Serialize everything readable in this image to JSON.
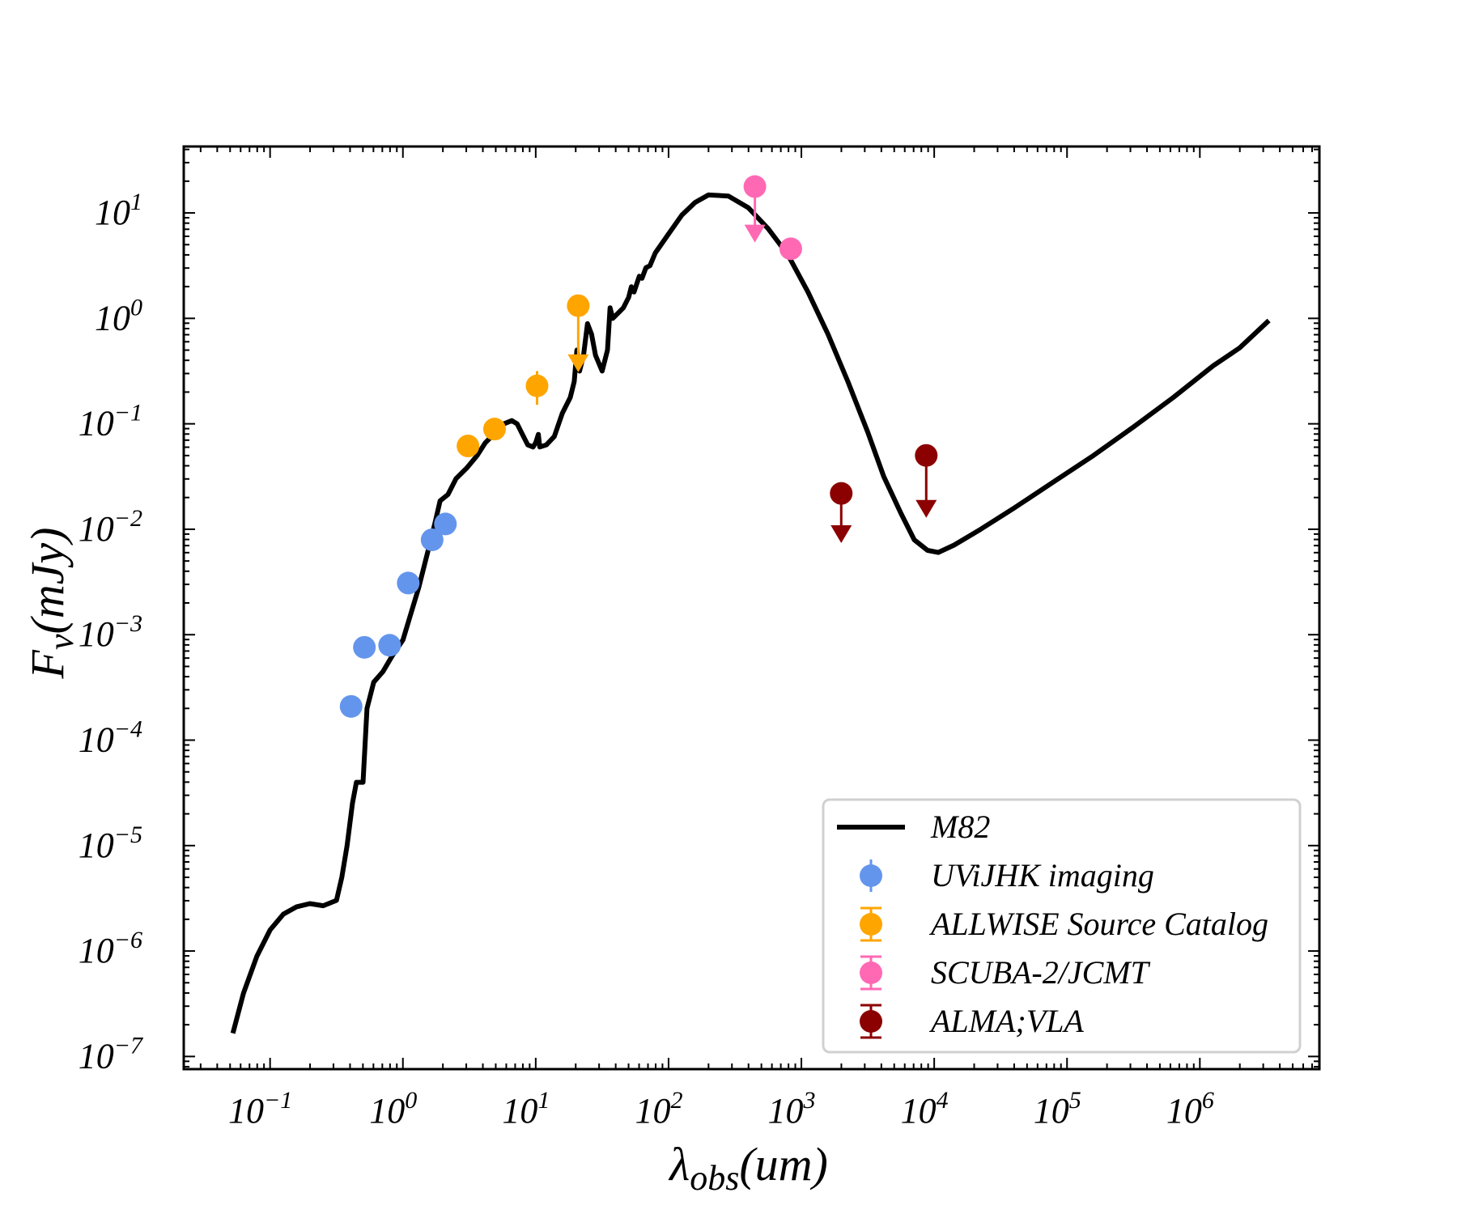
{
  "chart_data": {
    "type": "scatter",
    "title": "",
    "xscale": "log",
    "yscale": "log",
    "xlim_log10": [
      -1.65,
      6.9
    ],
    "ylim_log10": [
      -7.12,
      6.5
    ],
    "xlabel": {
      "main": "λ",
      "sub": "obs",
      "rest": "(um)"
    },
    "ylabel": {
      "main": "F",
      "sub": "ν",
      "rest": "(mJy)"
    },
    "x_ticks": [
      {
        "base": "10",
        "exp": "−1",
        "log": -1
      },
      {
        "base": "10",
        "exp": "0",
        "log": 0
      },
      {
        "base": "10",
        "exp": "1",
        "log": 1
      },
      {
        "base": "10",
        "exp": "2",
        "log": 2
      },
      {
        "base": "10",
        "exp": "3",
        "log": 3
      },
      {
        "base": "10",
        "exp": "4",
        "log": 4
      },
      {
        "base": "10",
        "exp": "5",
        "log": 5
      },
      {
        "base": "10",
        "exp": "6",
        "log": 6
      }
    ],
    "y_ticks": [
      {
        "base": "10",
        "exp": "1",
        "log": 1
      },
      {
        "base": "10",
        "exp": "0",
        "log": 0
      },
      {
        "base": "10",
        "exp": "−1",
        "log": -1
      },
      {
        "base": "10",
        "exp": "−2",
        "log": -2
      },
      {
        "base": "10",
        "exp": "−3",
        "log": -3
      },
      {
        "base": "10",
        "exp": "−4",
        "log": -4
      },
      {
        "base": "10",
        "exp": "−5",
        "log": -5
      },
      {
        "base": "10",
        "exp": "−6",
        "log": -6
      },
      {
        "base": "10",
        "exp": "−7",
        "log": -7
      }
    ],
    "model": {
      "name": "M82",
      "color": "#000000",
      "points_log10": [
        [
          -1.28,
          -6.78
        ],
        [
          -1.2,
          -6.4
        ],
        [
          -1.1,
          -6.05
        ],
        [
          -1.0,
          -5.8
        ],
        [
          -0.9,
          -5.65
        ],
        [
          -0.8,
          -5.58
        ],
        [
          -0.7,
          -5.55
        ],
        [
          -0.6,
          -5.57
        ],
        [
          -0.5,
          -5.52
        ],
        [
          -0.46,
          -5.3
        ],
        [
          -0.42,
          -5.0
        ],
        [
          -0.38,
          -4.6
        ],
        [
          -0.35,
          -4.4
        ],
        [
          -0.3,
          -4.4
        ],
        [
          -0.27,
          -3.7
        ],
        [
          -0.22,
          -3.45
        ],
        [
          -0.15,
          -3.35
        ],
        [
          -0.08,
          -3.2
        ],
        [
          0.0,
          -3.05
        ],
        [
          0.06,
          -2.8
        ],
        [
          0.12,
          -2.55
        ],
        [
          0.18,
          -2.25
        ],
        [
          0.24,
          -1.95
        ],
        [
          0.28,
          -1.73
        ],
        [
          0.34,
          -1.67
        ],
        [
          0.4,
          -1.52
        ],
        [
          0.48,
          -1.42
        ],
        [
          0.56,
          -1.3
        ],
        [
          0.62,
          -1.18
        ],
        [
          0.7,
          -1.08
        ],
        [
          0.76,
          -1.0
        ],
        [
          0.82,
          -0.97
        ],
        [
          0.86,
          -1.0
        ],
        [
          0.9,
          -1.1
        ],
        [
          0.94,
          -1.2
        ],
        [
          0.98,
          -1.22
        ],
        [
          1.0,
          -1.18
        ],
        [
          1.02,
          -1.1
        ],
        [
          1.03,
          -1.22
        ],
        [
          1.08,
          -1.2
        ],
        [
          1.14,
          -1.12
        ],
        [
          1.2,
          -0.9
        ],
        [
          1.26,
          -0.75
        ],
        [
          1.29,
          -0.6
        ],
        [
          1.31,
          -0.3
        ],
        [
          1.33,
          -0.5
        ],
        [
          1.36,
          -0.35
        ],
        [
          1.39,
          -0.05
        ],
        [
          1.42,
          -0.15
        ],
        [
          1.45,
          -0.35
        ],
        [
          1.5,
          -0.5
        ],
        [
          1.54,
          -0.3
        ],
        [
          1.56,
          0.1
        ],
        [
          1.58,
          0.0
        ],
        [
          1.62,
          0.05
        ],
        [
          1.66,
          0.1
        ],
        [
          1.7,
          0.2
        ],
        [
          1.72,
          0.3
        ],
        [
          1.74,
          0.25
        ],
        [
          1.78,
          0.4
        ],
        [
          1.8,
          0.38
        ],
        [
          1.83,
          0.48
        ],
        [
          1.86,
          0.5
        ],
        [
          1.9,
          0.62
        ],
        [
          2.0,
          0.8
        ],
        [
          2.1,
          0.98
        ],
        [
          2.2,
          1.1
        ],
        [
          2.3,
          1.17
        ],
        [
          2.45,
          1.16
        ],
        [
          2.6,
          1.05
        ],
        [
          2.75,
          0.85
        ],
        [
          2.9,
          0.6
        ],
        [
          3.05,
          0.25
        ],
        [
          3.2,
          -0.15
        ],
        [
          3.35,
          -0.6
        ],
        [
          3.5,
          -1.08
        ],
        [
          3.62,
          -1.5
        ],
        [
          3.75,
          -1.85
        ],
        [
          3.85,
          -2.1
        ],
        [
          3.95,
          -2.2
        ],
        [
          4.03,
          -2.22
        ],
        [
          4.15,
          -2.15
        ],
        [
          4.35,
          -2.0
        ],
        [
          4.6,
          -1.8
        ],
        [
          4.9,
          -1.55
        ],
        [
          5.2,
          -1.3
        ],
        [
          5.5,
          -1.03
        ],
        [
          5.8,
          -0.75
        ],
        [
          6.1,
          -0.45
        ],
        [
          6.3,
          -0.28
        ],
        [
          6.52,
          -0.02
        ]
      ]
    },
    "series": [
      {
        "name": "UViJHK imaging",
        "color": "#6495ED",
        "points": [
          {
            "log_x": -0.39,
            "log_y": -3.68,
            "upper_limit": false
          },
          {
            "log_x": -0.29,
            "log_y": -3.12,
            "upper_limit": false
          },
          {
            "log_x": -0.1,
            "log_y": -3.1,
            "upper_limit": false
          },
          {
            "log_x": 0.04,
            "log_y": -2.51,
            "upper_limit": false
          },
          {
            "log_x": 0.22,
            "log_y": -2.1,
            "upper_limit": false
          },
          {
            "log_x": 0.32,
            "log_y": -1.95,
            "upper_limit": false
          }
        ]
      },
      {
        "name": "ALLWISE Source Catalog",
        "color": "#FFA500",
        "points": [
          {
            "log_x": 0.49,
            "log_y": -1.21,
            "upper_limit": false
          },
          {
            "log_x": 0.69,
            "log_y": -1.05,
            "upper_limit": false
          },
          {
            "log_x": 1.01,
            "log_y": -0.64,
            "upper_limit": false,
            "err_log": [
              -0.82,
              -0.5
            ]
          },
          {
            "log_x": 1.32,
            "log_y": 0.12,
            "upper_limit": true,
            "arrow_to_log": -0.48
          }
        ]
      },
      {
        "name": "SCUBA-2/JCMT",
        "color": "#FF69B4",
        "points": [
          {
            "log_x": 2.65,
            "log_y": 1.25,
            "upper_limit": true,
            "arrow_to_log": 0.75
          },
          {
            "log_x": 2.92,
            "log_y": 0.66,
            "upper_limit": false
          }
        ]
      },
      {
        "name": "ALMA;VLA",
        "color": "#8B0000",
        "points": [
          {
            "log_x": 3.3,
            "log_y": -1.66,
            "upper_limit": true,
            "arrow_to_log": -2.1
          },
          {
            "log_x": 3.94,
            "log_y": -1.3,
            "upper_limit": true,
            "arrow_to_log": -1.86
          }
        ]
      }
    ],
    "legend": {
      "position": "lower-right",
      "entries": [
        {
          "label": "M82",
          "marker": "line",
          "color": "#000000"
        },
        {
          "label": "UViJHK imaging",
          "marker": "point-errorbar",
          "color": "#6495ED"
        },
        {
          "label": "ALLWISE Source Catalog",
          "marker": "point-errorbar",
          "color": "#FFA500"
        },
        {
          "label": "SCUBA-2/JCMT",
          "marker": "point-errorbar",
          "color": "#FF69B4"
        },
        {
          "label": "ALMA;VLA",
          "marker": "point-errorbar",
          "color": "#8B0000"
        }
      ]
    }
  }
}
